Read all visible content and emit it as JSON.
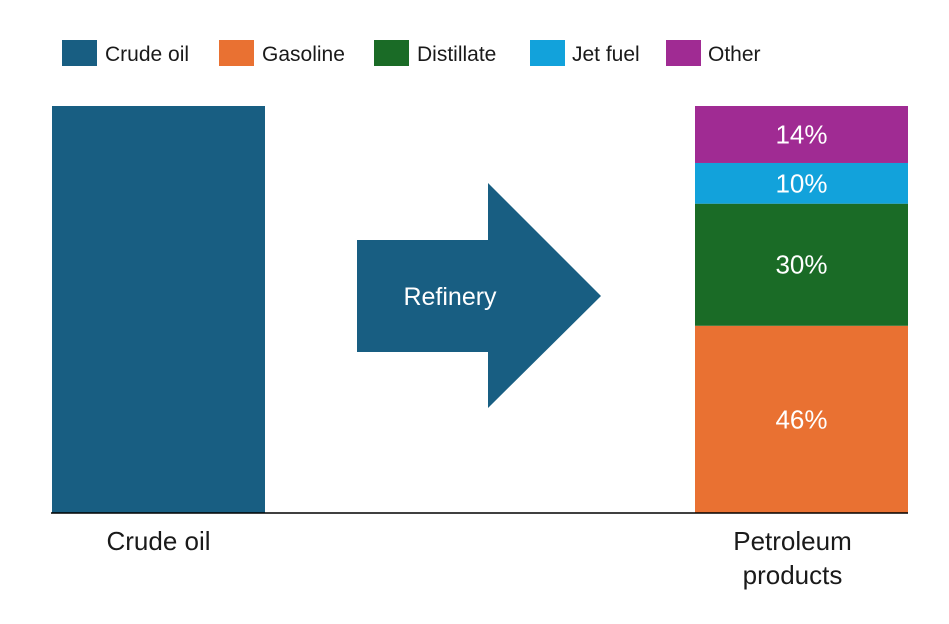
{
  "chart_data": {
    "type": "bar",
    "stacked": true,
    "categories": [
      "Crude oil",
      "Petroleum products"
    ],
    "series": [
      {
        "name": "Crude oil",
        "color": "#185e82",
        "values": [
          100,
          0
        ]
      },
      {
        "name": "Gasoline",
        "color": "#e97132",
        "values": [
          0,
          46
        ]
      },
      {
        "name": "Distillate",
        "color": "#1a6b26",
        "values": [
          0,
          30
        ]
      },
      {
        "name": "Jet fuel",
        "color": "#12a2db",
        "values": [
          0,
          10
        ]
      },
      {
        "name": "Other",
        "color": "#a02b93",
        "values": [
          0,
          14
        ]
      }
    ],
    "data_labels": [
      "46%",
      "30%",
      "10%",
      "14%"
    ],
    "ylim": [
      0,
      100
    ],
    "legend": "top-left",
    "grid": false,
    "annotation": {
      "text": "Refinery",
      "shape": "arrow-right",
      "color": "#185e82"
    },
    "axis_color": "#000000"
  }
}
